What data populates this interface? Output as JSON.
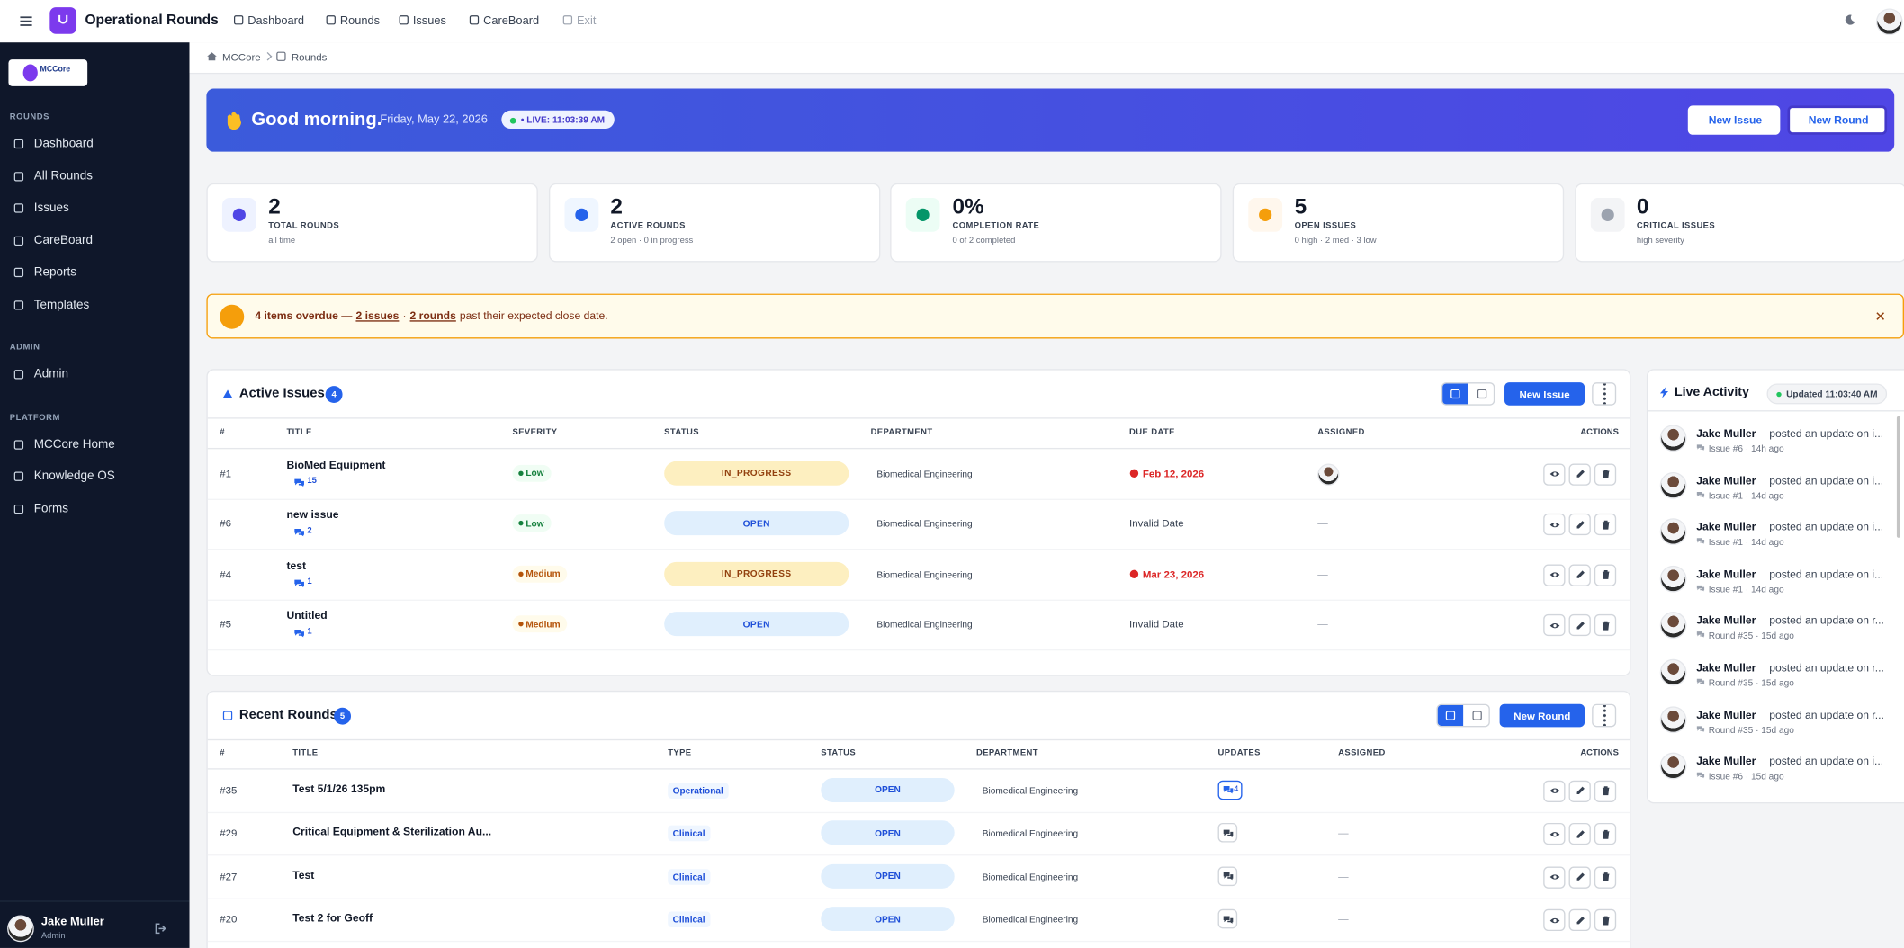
{
  "topbar": {
    "app_title": "Operational Rounds",
    "nav": [
      "Dashboard",
      "Rounds",
      "Issues",
      "CareBoard",
      "Exit"
    ]
  },
  "sidebar": {
    "logo": "MCCore",
    "sections": [
      {
        "heading": "ROUNDS",
        "items": [
          "Dashboard",
          "All Rounds",
          "Issues",
          "CareBoard",
          "Reports",
          "Templates"
        ]
      },
      {
        "heading": "ADMIN",
        "items": [
          "Admin"
        ]
      },
      {
        "heading": "PLATFORM",
        "items": [
          "MCCore Home",
          "Knowledge OS",
          "Forms"
        ]
      }
    ],
    "user": {
      "name": "Jake Muller",
      "role": "Admin"
    }
  },
  "breadcrumb": [
    "MCCore",
    "Rounds"
  ],
  "banner": {
    "greeting": "Good morning.",
    "date": "Friday, May 22, 2026",
    "live": "• LIVE: 11:03:39 AM",
    "buttons": [
      "New Issue",
      "New Round"
    ]
  },
  "stats": [
    {
      "value": "2",
      "label": "TOTAL ROUNDS",
      "sub": "all time",
      "color": "#4f46e5",
      "bg": "#eef2ff"
    },
    {
      "value": "2",
      "label": "ACTIVE ROUNDS",
      "sub": "2 open · 0 in progress",
      "color": "#2563eb",
      "bg": "#eff6ff"
    },
    {
      "value": "0%",
      "label": "COMPLETION RATE",
      "sub": "0 of 2 completed",
      "color": "#059669",
      "bg": "#ecfdf5"
    },
    {
      "value": "5",
      "label": "OPEN ISSUES",
      "sub": "0 high · 2 med · 3 low",
      "color": "#f59e0b",
      "bg": "#fff7ed"
    },
    {
      "value": "0",
      "label": "CRITICAL ISSUES",
      "sub": "high severity",
      "color": "#9ca3af",
      "bg": "#f3f4f6"
    }
  ],
  "alert": {
    "lead": "4 items overdue —",
    "issues_link": "2 issues",
    "sep": "·",
    "rounds_link": "2 rounds",
    "tail": "past their expected close date."
  },
  "issues": {
    "title": "Active Issues",
    "count": "4",
    "new_button": "New Issue",
    "columns": [
      "#",
      "TITLE",
      "SEVERITY",
      "STATUS",
      "DEPARTMENT",
      "DUE DATE",
      "ASSIGNED",
      "ACTIONS"
    ],
    "rows": [
      {
        "id": "#1",
        "title": "BioMed Equipment",
        "comments": "15",
        "severity": {
          "label": "Low",
          "color": "#15803d",
          "bg": "#f0fdf4"
        },
        "status": {
          "label": "IN_PROGRESS",
          "color": "#92400e",
          "bg": "#fdefc0"
        },
        "department": "Biomedical Engineering",
        "due": "Feb 12, 2026",
        "due_color": "#dc2626",
        "assigned": null
      },
      {
        "id": "#6",
        "title": "new issue",
        "comments": "2",
        "severity": {
          "label": "Low",
          "color": "#15803d",
          "bg": "#f0fdf4"
        },
        "status": {
          "label": "OPEN",
          "color": "#1d4ed8",
          "bg": "#e0effd"
        },
        "department": "Biomedical Engineering",
        "due": "Invalid Date",
        "due_color": "#374151",
        "assigned": "—"
      },
      {
        "id": "#4",
        "title": "test",
        "comments": "1",
        "severity": {
          "label": "Medium",
          "color": "#b45309",
          "bg": "#fffbeb"
        },
        "status": {
          "label": "IN_PROGRESS",
          "color": "#92400e",
          "bg": "#fdefc0"
        },
        "department": "Biomedical Engineering",
        "due": "Mar 23, 2026",
        "due_color": "#dc2626",
        "assigned": "—"
      },
      {
        "id": "#5",
        "title": "Untitled",
        "comments": "1",
        "severity": {
          "label": "Medium",
          "color": "#b45309",
          "bg": "#fffbeb"
        },
        "status": {
          "label": "OPEN",
          "color": "#1d4ed8",
          "bg": "#e0effd"
        },
        "department": "Biomedical Engineering",
        "due": "Invalid Date",
        "due_color": "#374151",
        "assigned": "—"
      }
    ]
  },
  "rounds": {
    "title": "Recent Rounds",
    "count": "5",
    "new_button": "New Round",
    "columns": [
      "#",
      "TITLE",
      "TYPE",
      "STATUS",
      "DEPARTMENT",
      "UPDATES",
      "ASSIGNED",
      "ACTIONS"
    ],
    "rows": [
      {
        "id": "#35",
        "title": "Test 5/1/26 135pm",
        "type": "Operational",
        "status": "OPEN",
        "department": "Biomedical Engineering",
        "updates": "4",
        "assigned": "—"
      },
      {
        "id": "#29",
        "title": "Critical Equipment & Sterilization Au...",
        "type": "Clinical",
        "status": "OPEN",
        "department": "Biomedical Engineering",
        "updates": null,
        "assigned": "—"
      },
      {
        "id": "#27",
        "title": "Test",
        "type": "Clinical",
        "status": "OPEN",
        "department": "Biomedical Engineering",
        "updates": null,
        "assigned": "—"
      },
      {
        "id": "#20",
        "title": "Test 2 for Geoff",
        "type": "Clinical",
        "status": "OPEN",
        "department": "Biomedical Engineering",
        "updates": null,
        "assigned": "—"
      }
    ]
  },
  "activity": {
    "title": "Live Activity",
    "updated": "Updated 11:03:40 AM",
    "items": [
      {
        "name": "Jake Muller",
        "text": "posted an update on i...",
        "meta": "Issue #6 · 14h ago"
      },
      {
        "name": "Jake Muller",
        "text": "posted an update on i...",
        "meta": "Issue #1 · 14d ago"
      },
      {
        "name": "Jake Muller",
        "text": "posted an update on i...",
        "meta": "Issue #1 · 14d ago"
      },
      {
        "name": "Jake Muller",
        "text": "posted an update on i...",
        "meta": "Issue #1 · 14d ago"
      },
      {
        "name": "Jake Muller",
        "text": "posted an update on r...",
        "meta": "Round #35 · 15d ago"
      },
      {
        "name": "Jake Muller",
        "text": "posted an update on r...",
        "meta": "Round #35 · 15d ago"
      },
      {
        "name": "Jake Muller",
        "text": "posted an update on r...",
        "meta": "Round #35 · 15d ago"
      },
      {
        "name": "Jake Muller",
        "text": "posted an update on i...",
        "meta": "Issue #6 · 15d ago"
      }
    ]
  }
}
